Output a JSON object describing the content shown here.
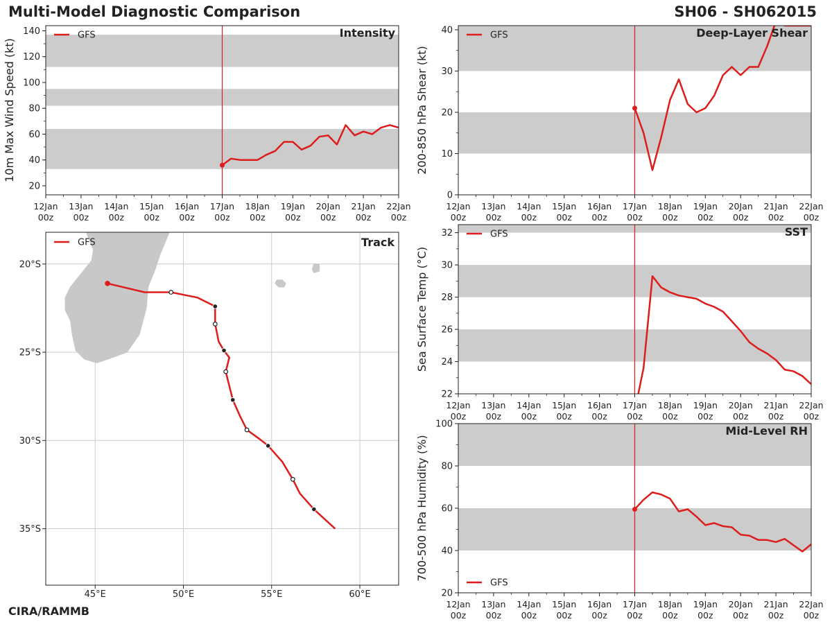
{
  "header": {
    "title": "Multi-Model Diagnostic Comparison",
    "storm_id": "SH06 - SH062015",
    "credit": "CIRA/RAMMB"
  },
  "colors": {
    "model": "#dd1c1c",
    "band": "#cccccc",
    "land": "#c8c8c8",
    "grid": "#cccccc",
    "init_line": "#dd1c1c"
  },
  "time_axis": {
    "tick_top": [
      "12Jan",
      "13Jan",
      "14Jan",
      "15Jan",
      "16Jan",
      "17Jan",
      "18Jan",
      "19Jan",
      "20Jan",
      "21Jan",
      "22Jan"
    ],
    "tick_bottom": "00z",
    "domain": [
      0,
      10
    ],
    "init_day": 5
  },
  "chart_data": [
    {
      "id": "intensity",
      "type": "line",
      "title": "Intensity",
      "ylabel": "10m Max Wind Speed (kt)",
      "ylim": [
        13,
        144
      ],
      "yticks": [
        20,
        40,
        60,
        80,
        100,
        120,
        140
      ],
      "bands": [
        [
          33,
          64
        ],
        [
          82,
          95
        ],
        [
          112,
          137
        ]
      ],
      "legend": "GFS",
      "series": [
        {
          "name": "GFS",
          "x": [
            5,
            5.25,
            5.5,
            5.75,
            6,
            6.25,
            6.5,
            6.75,
            7,
            7.25,
            7.5,
            7.75,
            8,
            8.25,
            8.5,
            8.75,
            9,
            9.25,
            9.5,
            9.75,
            10
          ],
          "y": [
            36,
            41,
            40,
            40,
            40,
            44,
            47,
            54,
            54,
            48,
            51,
            58,
            59,
            52,
            67,
            59,
            62,
            60,
            65,
            67,
            65
          ]
        }
      ]
    },
    {
      "id": "shear",
      "type": "line",
      "title": "Deep-Layer Shear",
      "ylabel": "200-850 hPa Shear (kt)",
      "ylim": [
        0,
        41
      ],
      "yticks": [
        0,
        10,
        20,
        30,
        40
      ],
      "bands": [
        [
          10,
          20
        ],
        [
          30,
          41
        ]
      ],
      "legend": "GFS",
      "series": [
        {
          "name": "GFS",
          "x": [
            5,
            5.25,
            5.5,
            5.75,
            6,
            6.25,
            6.5,
            6.75,
            7,
            7.25,
            7.5,
            7.75,
            8,
            8.25,
            8.5,
            8.75,
            9,
            9.25,
            9.5,
            9.75,
            10
          ],
          "y": [
            21,
            15,
            6,
            14,
            23,
            28,
            22,
            20,
            21,
            24,
            29,
            31,
            29,
            31,
            31,
            36,
            42,
            41,
            41,
            41,
            41
          ]
        }
      ]
    },
    {
      "id": "sst",
      "type": "line",
      "title": "SST",
      "ylabel": "Sea Surface Temp (°C)",
      "ylim": [
        22,
        32.5
      ],
      "yticks": [
        22,
        24,
        26,
        28,
        30,
        32
      ],
      "bands": [
        [
          24,
          26
        ],
        [
          28,
          30
        ],
        [
          32,
          32.5
        ]
      ],
      "legend": "GFS",
      "series": [
        {
          "name": "GFS",
          "x": [
            5.1,
            5.25,
            5.5,
            5.75,
            6,
            6.25,
            6.5,
            6.75,
            7,
            7.25,
            7.5,
            7.75,
            8,
            8.25,
            8.5,
            8.75,
            9,
            9.25,
            9.5,
            9.75,
            10
          ],
          "y": [
            22,
            23.6,
            29.3,
            28.6,
            28.3,
            28.1,
            28.0,
            27.9,
            27.6,
            27.4,
            27.1,
            26.5,
            25.9,
            25.2,
            24.8,
            24.5,
            24.1,
            23.5,
            23.4,
            23.1,
            22.6
          ]
        }
      ]
    },
    {
      "id": "rh",
      "type": "line",
      "title": "Mid-Level RH",
      "ylabel": "700-500 hPa Humidity (%)",
      "ylim": [
        20,
        100
      ],
      "yticks": [
        20,
        40,
        60,
        80,
        100
      ],
      "bands": [
        [
          40,
          60
        ],
        [
          80,
          100
        ]
      ],
      "legend": "GFS",
      "series": [
        {
          "name": "GFS",
          "x": [
            5,
            5.25,
            5.5,
            5.75,
            6,
            6.25,
            6.5,
            6.75,
            7,
            7.25,
            7.5,
            7.75,
            8,
            8.25,
            8.5,
            8.75,
            9,
            9.25,
            9.5,
            9.75,
            10
          ],
          "y": [
            59.5,
            64,
            67.5,
            66.5,
            64.5,
            58.5,
            59.5,
            56,
            52,
            53,
            51.5,
            51,
            47.5,
            47,
            45,
            45,
            44,
            45.5,
            42.5,
            39.5,
            43
          ]
        }
      ]
    },
    {
      "id": "track",
      "type": "scatter",
      "title": "Track",
      "legend": "GFS",
      "xlim": [
        42.2,
        62.2
      ],
      "ylim": [
        -38.2,
        -18.2
      ],
      "xticks": [
        45,
        50,
        55,
        60
      ],
      "xtick_labels": [
        "45°E",
        "50°E",
        "55°E",
        "60°E"
      ],
      "yticks": [
        -20,
        -25,
        -30,
        -35
      ],
      "ytick_labels": [
        "20°S",
        "25°S",
        "30°S",
        "35°S"
      ],
      "path": [
        [
          45.7,
          -21.1
        ],
        [
          47.8,
          -21.6
        ],
        [
          49.3,
          -21.6
        ],
        [
          50.8,
          -21.9
        ],
        [
          51.8,
          -22.4
        ],
        [
          51.8,
          -23.4
        ],
        [
          52.0,
          -24.4
        ],
        [
          52.3,
          -24.9
        ],
        [
          52.6,
          -25.3
        ],
        [
          52.4,
          -26.1
        ],
        [
          52.6,
          -26.9
        ],
        [
          52.8,
          -27.7
        ],
        [
          53.2,
          -28.6
        ],
        [
          53.6,
          -29.4
        ],
        [
          54.3,
          -29.9
        ],
        [
          54.8,
          -30.3
        ],
        [
          55.6,
          -31.2
        ],
        [
          56.2,
          -32.2
        ],
        [
          56.6,
          -33.0
        ],
        [
          57.4,
          -33.9
        ],
        [
          58.6,
          -35.0
        ]
      ],
      "markers_filled": [
        [
          45.7,
          -21.1
        ],
        [
          51.8,
          -22.4
        ],
        [
          52.3,
          -24.9
        ],
        [
          52.8,
          -27.7
        ],
        [
          54.8,
          -30.3
        ],
        [
          57.4,
          -33.9
        ]
      ],
      "markers_open": [
        [
          49.3,
          -21.6
        ],
        [
          51.8,
          -23.4
        ],
        [
          52.4,
          -26.1
        ],
        [
          53.6,
          -29.4
        ],
        [
          56.2,
          -32.2
        ]
      ],
      "land": [
        [
          [
            49.2,
            -18.2
          ],
          [
            48.7,
            -19.4
          ],
          [
            48.4,
            -20.3
          ],
          [
            48.0,
            -21.3
          ],
          [
            47.9,
            -22.5
          ],
          [
            47.5,
            -24.0
          ],
          [
            46.8,
            -25.0
          ],
          [
            45.7,
            -25.4
          ],
          [
            45.1,
            -25.6
          ],
          [
            44.4,
            -25.4
          ],
          [
            43.9,
            -24.9
          ],
          [
            43.7,
            -24.0
          ],
          [
            43.6,
            -23.2
          ],
          [
            43.3,
            -22.6
          ],
          [
            43.3,
            -21.9
          ],
          [
            43.6,
            -21.3
          ],
          [
            44.0,
            -20.8
          ],
          [
            44.4,
            -20.3
          ],
          [
            44.8,
            -19.8
          ],
          [
            44.9,
            -19.2
          ],
          [
            44.5,
            -18.2
          ]
        ],
        [
          [
            55.3,
            -20.9
          ],
          [
            55.6,
            -20.9
          ],
          [
            55.8,
            -21.1
          ],
          [
            55.7,
            -21.3
          ],
          [
            55.4,
            -21.3
          ],
          [
            55.2,
            -21.1
          ]
        ],
        [
          [
            57.4,
            -20.0
          ],
          [
            57.7,
            -20.0
          ],
          [
            57.7,
            -20.4
          ],
          [
            57.4,
            -20.5
          ],
          [
            57.3,
            -20.3
          ]
        ]
      ]
    }
  ]
}
